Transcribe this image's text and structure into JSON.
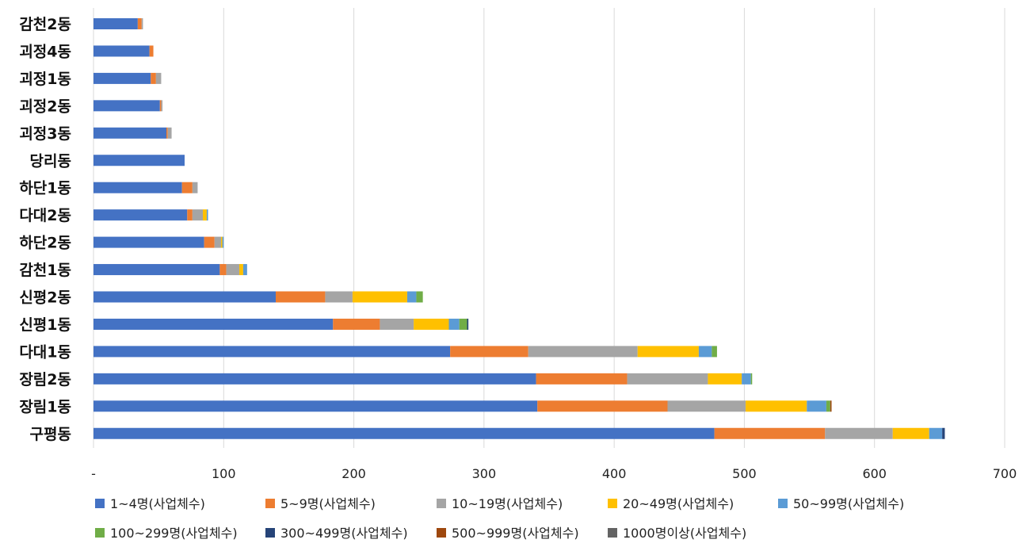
{
  "chart_data": {
    "type": "bar",
    "orientation": "horizontal",
    "stacked": true,
    "categories": [
      "감천2동",
      "괴정4동",
      "괴정1동",
      "괴정2동",
      "괴정3동",
      "당리동",
      "하단1동",
      "다대2동",
      "하단2동",
      "감천1동",
      "신평2동",
      "신평1동",
      "다대1동",
      "장림2동",
      "장림1동",
      "구평동"
    ],
    "series": [
      {
        "name": "1~4명(사업체수)",
        "color": "#4472C4",
        "values": [
          34,
          43,
          44,
          51,
          56,
          70,
          68,
          72,
          85,
          97,
          140,
          184,
          274,
          340,
          341,
          477
        ]
      },
      {
        "name": "5~9명(사업체수)",
        "color": "#ED7D31",
        "values": [
          3,
          3,
          4,
          1,
          1,
          0,
          8,
          4,
          8,
          5,
          38,
          36,
          60,
          70,
          100,
          85
        ]
      },
      {
        "name": "10~19명(사업체수)",
        "color": "#A5A5A5",
        "values": [
          1,
          0,
          4,
          1,
          3,
          0,
          4,
          8,
          5,
          10,
          21,
          26,
          84,
          62,
          60,
          52
        ]
      },
      {
        "name": "20~49명(사업체수)",
        "color": "#FFC000",
        "values": [
          0,
          0,
          0,
          0,
          0,
          0,
          0,
          3,
          1,
          3,
          42,
          27,
          47,
          26,
          47,
          28
        ]
      },
      {
        "name": "50~99명(사업체수)",
        "color": "#5B9BD5",
        "values": [
          0,
          0,
          0,
          0,
          0,
          0,
          0,
          1,
          1,
          3,
          7,
          8,
          10,
          7,
          15,
          10
        ]
      },
      {
        "name": "100~299명(사업체수)",
        "color": "#70AD47",
        "values": [
          0,
          0,
          0,
          0,
          0,
          0,
          0,
          0,
          0,
          0,
          5,
          6,
          4,
          1,
          3,
          0
        ]
      },
      {
        "name": "300~499명(사업체수)",
        "color": "#264478",
        "values": [
          0,
          0,
          0,
          0,
          0,
          0,
          0,
          0,
          0,
          0,
          0,
          1,
          0,
          0,
          0,
          2
        ]
      },
      {
        "name": "500~999명(사업체수)",
        "color": "#9E480E",
        "values": [
          0,
          0,
          0,
          0,
          0,
          0,
          0,
          0,
          0,
          0,
          0,
          0,
          0,
          0,
          1,
          0
        ]
      },
      {
        "name": "1000명이상(사업체수)",
        "color": "#636363",
        "values": [
          0,
          0,
          0,
          0,
          0,
          0,
          0,
          0,
          0,
          0,
          0,
          0,
          0,
          0,
          0,
          0
        ]
      }
    ],
    "xticks": [
      "-",
      "100",
      "200",
      "300",
      "400",
      "500",
      "600",
      "700"
    ],
    "xlim": [
      0,
      700
    ],
    "grid": true,
    "legend_position": "bottom",
    "title": "",
    "xlabel": "",
    "ylabel": ""
  }
}
